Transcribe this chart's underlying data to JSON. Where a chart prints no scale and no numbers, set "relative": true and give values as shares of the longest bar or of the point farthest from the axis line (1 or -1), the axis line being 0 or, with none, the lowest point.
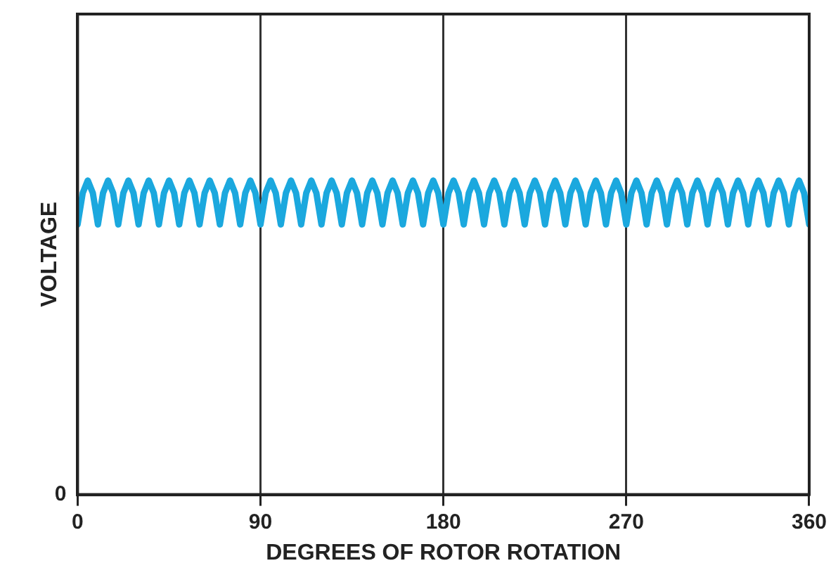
{
  "chart_data": {
    "type": "line",
    "relative": true,
    "xlabel": "DEGREES OF ROTOR ROTATION",
    "ylabel": "VOLTAGE",
    "xlim": [
      0,
      360
    ],
    "xticks": [
      0,
      90,
      180,
      270,
      360
    ],
    "annotations": [
      "0"
    ],
    "grid": "x",
    "marker": "none",
    "line_style": "solid",
    "series": [
      {
        "color": "#1ba8de",
        "x": [
          0,
          2.5,
          5,
          7.5,
          10,
          12.5,
          15,
          17.5,
          20,
          22.5,
          25,
          27.5,
          30,
          32.5,
          35,
          37.5,
          40,
          42.5,
          45,
          47.5,
          50,
          52.5,
          55,
          57.5,
          60,
          62.5,
          65,
          67.5,
          70,
          72.5,
          75,
          77.5,
          80,
          82.5,
          85,
          87.5,
          90,
          92.5,
          95,
          97.5,
          100,
          102.5,
          105,
          107.5,
          110,
          112.5,
          115,
          117.5,
          120,
          122.5,
          125,
          127.5,
          130,
          132.5,
          135,
          137.5,
          140,
          142.5,
          145,
          147.5,
          150,
          152.5,
          155,
          157.5,
          160,
          162.5,
          165,
          167.5,
          170,
          172.5,
          175,
          177.5,
          180,
          182.5,
          185,
          187.5,
          190,
          192.5,
          195,
          197.5,
          200,
          202.5,
          205,
          207.5,
          210,
          212.5,
          215,
          217.5,
          220,
          222.5,
          225,
          227.5,
          230,
          232.5,
          235,
          237.5,
          240,
          242.5,
          245,
          247.5,
          250,
          252.5,
          255,
          257.5,
          260,
          262.5,
          265,
          267.5,
          270,
          272.5,
          275,
          277.5,
          280,
          282.5,
          285,
          287.5,
          290,
          292.5,
          295,
          297.5,
          300,
          302.5,
          305,
          307.5,
          310,
          312.5,
          315,
          317.5,
          320,
          322.5,
          325,
          327.5,
          330,
          332.5,
          335,
          337.5,
          340,
          342.5,
          345,
          347.5,
          350,
          352.5,
          355,
          357.5,
          360
        ],
        "values": [
          0.86,
          0.96,
          1,
          0.96,
          0.86,
          0.96,
          1,
          0.96,
          0.86,
          0.96,
          1,
          0.96,
          0.86,
          0.96,
          1,
          0.96,
          0.86,
          0.96,
          1,
          0.96,
          0.86,
          0.96,
          1,
          0.96,
          0.86,
          0.96,
          1,
          0.96,
          0.86,
          0.96,
          1,
          0.96,
          0.86,
          0.96,
          1,
          0.96,
          0.86,
          0.96,
          1,
          0.96,
          0.86,
          0.96,
          1,
          0.96,
          0.86,
          0.96,
          1,
          0.96,
          0.86,
          0.96,
          1,
          0.96,
          0.86,
          0.96,
          1,
          0.96,
          0.86,
          0.96,
          1,
          0.96,
          0.86,
          0.96,
          1,
          0.96,
          0.86,
          0.96,
          1,
          0.96,
          0.86,
          0.96,
          1,
          0.96,
          0.86,
          0.96,
          1,
          0.96,
          0.86,
          0.96,
          1,
          0.96,
          0.86,
          0.96,
          1,
          0.96,
          0.86,
          0.96,
          1,
          0.96,
          0.86,
          0.96,
          1,
          0.96,
          0.86,
          0.96,
          1,
          0.96,
          0.86,
          0.96,
          1,
          0.96,
          0.86,
          0.96,
          1,
          0.96,
          0.86,
          0.96,
          1,
          0.96,
          0.86,
          0.96,
          1,
          0.96,
          0.86,
          0.96,
          1,
          0.96,
          0.86,
          0.96,
          1,
          0.96,
          0.86,
          0.96,
          1,
          0.96,
          0.86,
          0.96,
          1,
          0.96,
          0.86,
          0.96,
          1,
          0.96,
          0.86,
          0.96,
          1,
          0.96,
          0.86,
          0.96,
          1,
          0.96,
          0.86,
          0.96,
          1,
          0.96,
          0.86
        ]
      }
    ]
  }
}
